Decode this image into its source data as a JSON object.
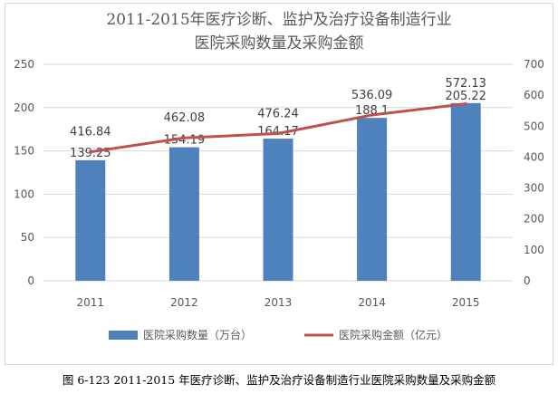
{
  "chart_data": {
    "type": "bar+line",
    "title_line1": "2011-2015年医疗诊断、监护及治疗设备制造行业",
    "title_line2": "医院采购数量及采购金额",
    "categories": [
      "2011",
      "2012",
      "2013",
      "2014",
      "2015"
    ],
    "series": [
      {
        "name": "医院采购数量（万台）",
        "type": "bar",
        "axis": "left",
        "color": "#4f81bd",
        "values": [
          139.25,
          154.19,
          164.17,
          188.1,
          205.22
        ],
        "labels": [
          "139.25",
          "154.19",
          "164.17",
          "188.1",
          "205.22"
        ]
      },
      {
        "name": "医院采购金额（亿元）",
        "type": "line",
        "axis": "right",
        "color": "#c0504d",
        "values": [
          416.84,
          462.08,
          476.24,
          536.09,
          572.13
        ],
        "labels": [
          "416.84",
          "462.08",
          "476.24",
          "536.09",
          "572.13"
        ]
      }
    ],
    "y_left": {
      "min": 0,
      "max": 250,
      "ticks": [
        "0",
        "50",
        "100",
        "150",
        "200",
        "250"
      ]
    },
    "y_right": {
      "min": 0,
      "max": 700,
      "ticks": [
        "0",
        "100",
        "200",
        "300",
        "400",
        "500",
        "600",
        "700"
      ]
    },
    "legend_position": "bottom",
    "grid": true
  },
  "caption": "图 6-123 2011-2015 年医疗诊断、监护及治疗设备制造行业医院采购数量及采购金额"
}
